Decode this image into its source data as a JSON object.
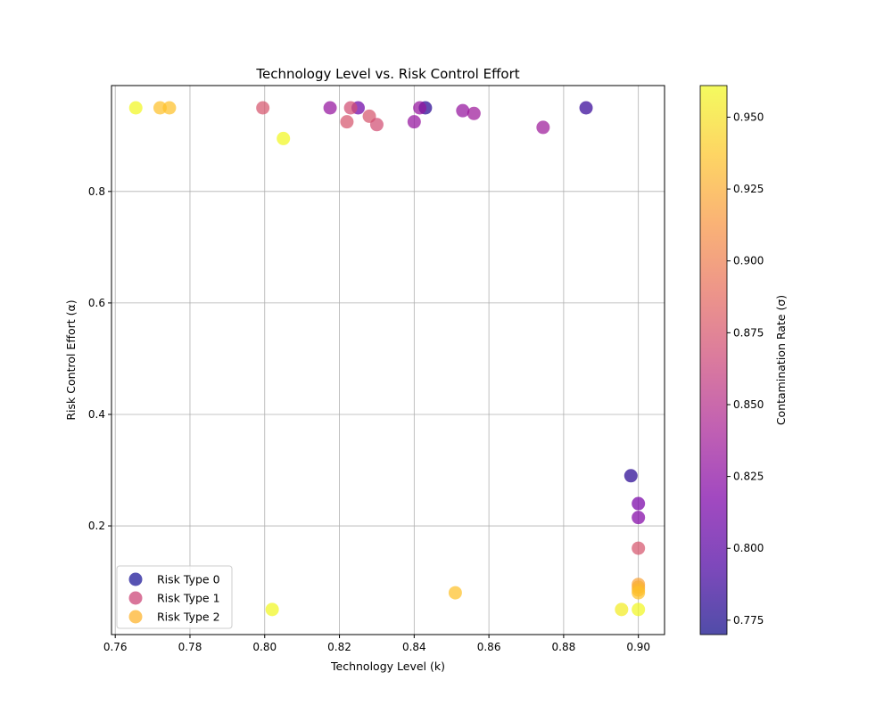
{
  "chart_data": {
    "type": "scatter",
    "title": "Technology Level vs. Risk Control Effort",
    "xlabel": "Technology Level (k)",
    "ylabel": "Risk Control Effort (α)",
    "xlim": [
      0.759,
      0.907
    ],
    "ylim": [
      0.005,
      0.99
    ],
    "x_ticks": [
      "0.76",
      "0.78",
      "0.80",
      "0.82",
      "0.84",
      "0.86",
      "0.88",
      "0.90"
    ],
    "y_ticks": [
      "0.2",
      "0.4",
      "0.6",
      "0.8"
    ],
    "grid": true,
    "legend_position": "lower-left",
    "colorbar": {
      "label": "Contamination Rate (σ)",
      "range": [
        0.77,
        0.961
      ],
      "ticks": [
        "0.775",
        "0.800",
        "0.825",
        "0.850",
        "0.875",
        "0.900",
        "0.925",
        "0.950"
      ],
      "colormap": "plasma"
    },
    "series": [
      {
        "name": "Risk Type 0",
        "legend_color": "#1f1a9a",
        "points": [
          {
            "x": 0.843,
            "y": 0.95,
            "c": 0.78
          },
          {
            "x": 0.886,
            "y": 0.95,
            "c": 0.785
          },
          {
            "x": 0.898,
            "y": 0.29,
            "c": 0.78
          },
          {
            "x": 0.825,
            "y": 0.95,
            "c": 0.81
          },
          {
            "x": 0.9,
            "y": 0.24,
            "c": 0.815
          },
          {
            "x": 0.9,
            "y": 0.215,
            "c": 0.82
          },
          {
            "x": 0.8175,
            "y": 0.95,
            "c": 0.83
          },
          {
            "x": 0.8415,
            "y": 0.95,
            "c": 0.83
          },
          {
            "x": 0.853,
            "y": 0.945,
            "c": 0.83
          },
          {
            "x": 0.856,
            "y": 0.94,
            "c": 0.835
          },
          {
            "x": 0.84,
            "y": 0.925,
            "c": 0.83
          },
          {
            "x": 0.8745,
            "y": 0.915,
            "c": 0.835
          }
        ]
      },
      {
        "name": "Risk Type 1",
        "legend_color": "#cc4778",
        "points": [
          {
            "x": 0.7995,
            "y": 0.95,
            "c": 0.875
          },
          {
            "x": 0.823,
            "y": 0.95,
            "c": 0.87
          },
          {
            "x": 0.822,
            "y": 0.925,
            "c": 0.875
          },
          {
            "x": 0.828,
            "y": 0.935,
            "c": 0.875
          },
          {
            "x": 0.83,
            "y": 0.92,
            "c": 0.87
          },
          {
            "x": 0.9,
            "y": 0.16,
            "c": 0.875
          }
        ]
      },
      {
        "name": "Risk Type 2",
        "legend_color": "#fdb42f",
        "points": [
          {
            "x": 0.7655,
            "y": 0.95,
            "c": 0.96
          },
          {
            "x": 0.772,
            "y": 0.95,
            "c": 0.935
          },
          {
            "x": 0.7745,
            "y": 0.95,
            "c": 0.935
          },
          {
            "x": 0.805,
            "y": 0.895,
            "c": 0.96
          },
          {
            "x": 0.802,
            "y": 0.05,
            "c": 0.96
          },
          {
            "x": 0.851,
            "y": 0.08,
            "c": 0.935
          },
          {
            "x": 0.8955,
            "y": 0.05,
            "c": 0.955
          },
          {
            "x": 0.9,
            "y": 0.05,
            "c": 0.96
          },
          {
            "x": 0.9,
            "y": 0.095,
            "c": 0.92
          },
          {
            "x": 0.9,
            "y": 0.09,
            "c": 0.925
          },
          {
            "x": 0.9,
            "y": 0.085,
            "c": 0.93
          },
          {
            "x": 0.9,
            "y": 0.08,
            "c": 0.935
          }
        ]
      }
    ]
  }
}
